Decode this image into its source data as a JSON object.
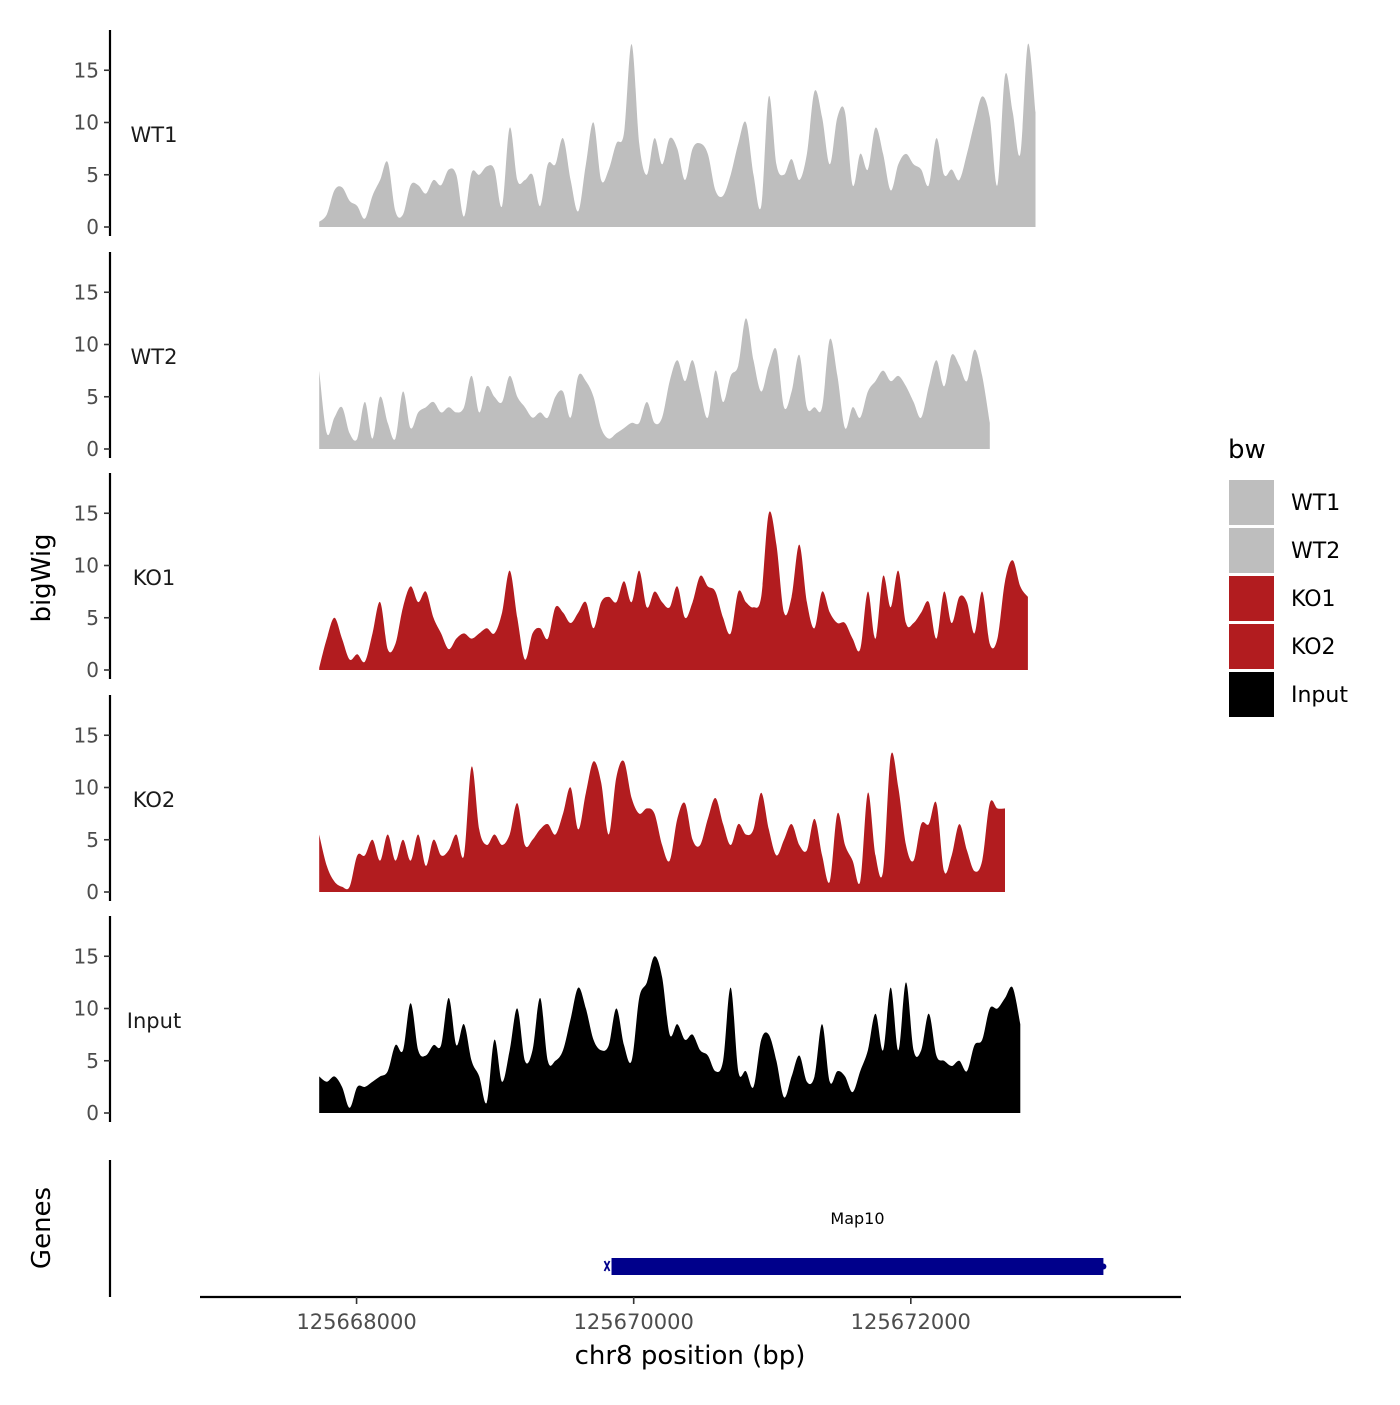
{
  "chart_data": {
    "type": "area",
    "title": "",
    "xlabel": "chr8 position (bp)",
    "ylabel": "bigWig",
    "genes_label": "Genes",
    "x_range": [
      125666870,
      125673950
    ],
    "x_ticks": [
      125668000,
      125670000,
      125672000
    ],
    "x_tick_labels": [
      "125668000",
      "125670000",
      "125672000"
    ],
    "y_range": [
      0,
      19
    ],
    "y_ticks": [
      0,
      5,
      10,
      15
    ],
    "y_tick_labels": [
      "0",
      "5",
      "10",
      "15"
    ],
    "legend_title": "bw",
    "legend_position": "right",
    "legend_entries": [
      {
        "label": "WT1",
        "color": "#bebebe"
      },
      {
        "label": "WT2",
        "color": "#bebebe"
      },
      {
        "label": "KO1",
        "color": "#b21c1f"
      },
      {
        "label": "KO2",
        "color": "#b21c1f"
      },
      {
        "label": "Input",
        "color": "#000000"
      }
    ],
    "x_start": 125667730,
    "x_step": 55,
    "series": [
      {
        "name": "WT1",
        "color": "#bebebe",
        "values": [
          0.5,
          1.2,
          3.5,
          3.8,
          2.5,
          2.0,
          0.8,
          3.0,
          4.5,
          6.2,
          1.5,
          1.2,
          4.0,
          4.0,
          3.2,
          4.5,
          4.0,
          5.5,
          5.0,
          1.0,
          5.2,
          5.0,
          5.8,
          5.5,
          2.0,
          9.5,
          4.5,
          4.5,
          5.0,
          2.0,
          6.0,
          6.0,
          8.5,
          4.5,
          1.5,
          6.0,
          10.0,
          4.5,
          5.5,
          8.0,
          9.0,
          17.5,
          8.0,
          5.0,
          8.5,
          6.0,
          8.5,
          7.5,
          4.5,
          7.5,
          8.0,
          7.0,
          3.5,
          3.0,
          5.0,
          8.0,
          10.0,
          5.0,
          2.0,
          12.5,
          6.0,
          5.0,
          6.5,
          4.5,
          7.0,
          13.0,
          10.5,
          6.0,
          10.5,
          11.0,
          4.0,
          7.0,
          5.5,
          9.5,
          7.0,
          3.5,
          6.0,
          7.0,
          6.0,
          5.5,
          4.0,
          8.5,
          5.0,
          5.5,
          4.5,
          7.0,
          10.0,
          12.5,
          10.5,
          4.0,
          14.5,
          11.0,
          7.0,
          17.5,
          11.0
        ]
      },
      {
        "name": "WT2",
        "color": "#bebebe",
        "values": [
          7.5,
          1.5,
          3.0,
          4.0,
          1.5,
          1.0,
          4.5,
          1.0,
          5.0,
          2.5,
          1.0,
          5.5,
          2.0,
          3.5,
          4.0,
          4.5,
          3.5,
          4.0,
          3.5,
          4.0,
          7.0,
          3.5,
          6.0,
          5.0,
          4.5,
          7.0,
          5.0,
          4.0,
          3.0,
          3.5,
          3.0,
          5.0,
          5.5,
          3.0,
          7.0,
          6.5,
          5.0,
          2.0,
          1.0,
          1.5,
          2.0,
          2.5,
          2.5,
          4.5,
          2.5,
          3.0,
          6.5,
          8.5,
          6.5,
          8.5,
          5.5,
          3.0,
          7.5,
          4.5,
          7.0,
          8.0,
          12.5,
          8.5,
          5.5,
          8.0,
          9.5,
          4.0,
          5.5,
          9.0,
          4.0,
          4.0,
          4.0,
          10.5,
          7.0,
          2.0,
          4.0,
          3.0,
          5.5,
          6.5,
          7.5,
          6.5,
          7.0,
          6.0,
          4.5,
          3.0,
          6.0,
          8.5,
          6.0,
          9.0,
          8.0,
          6.5,
          9.5,
          7.0,
          2.5
        ]
      },
      {
        "name": "KO1",
        "color": "#b21c1f",
        "values": [
          0.2,
          3.0,
          5.0,
          3.0,
          1.0,
          1.5,
          0.8,
          3.5,
          6.5,
          2.0,
          2.5,
          6.0,
          8.0,
          6.5,
          7.5,
          5.0,
          3.5,
          2.0,
          3.0,
          3.5,
          3.0,
          3.5,
          4.0,
          3.5,
          5.5,
          9.5,
          5.0,
          1.0,
          3.5,
          4.0,
          3.0,
          6.0,
          5.5,
          4.5,
          5.5,
          6.5,
          4.0,
          6.5,
          7.0,
          6.5,
          8.5,
          6.5,
          9.5,
          6.0,
          7.5,
          6.5,
          6.0,
          8.0,
          5.0,
          6.5,
          9.0,
          8.0,
          7.5,
          5.0,
          3.5,
          7.5,
          6.5,
          6.0,
          7.0,
          15.0,
          12.0,
          5.5,
          7.0,
          12.0,
          6.5,
          4.0,
          7.5,
          5.5,
          4.5,
          4.5,
          3.0,
          2.0,
          7.5,
          3.0,
          9.0,
          6.0,
          9.5,
          4.5,
          4.5,
          5.5,
          6.5,
          3.0,
          7.5,
          4.5,
          7.0,
          6.5,
          3.5,
          7.5,
          2.5,
          3.0,
          8.5,
          10.5,
          8.0,
          7.0
        ]
      },
      {
        "name": "KO2",
        "color": "#b21c1f",
        "values": [
          5.5,
          2.5,
          1.0,
          0.5,
          0.5,
          3.5,
          3.5,
          5.0,
          3.0,
          5.5,
          3.0,
          5.0,
          3.0,
          5.5,
          2.5,
          5.0,
          3.5,
          4.0,
          5.5,
          3.5,
          12.0,
          6.0,
          4.5,
          5.5,
          4.5,
          5.5,
          8.5,
          4.5,
          5.0,
          6.0,
          6.5,
          5.5,
          7.5,
          10.0,
          6.0,
          9.5,
          12.5,
          10.5,
          5.5,
          11.0,
          12.5,
          9.0,
          7.5,
          8.0,
          7.5,
          4.5,
          3.0,
          7.0,
          8.5,
          5.0,
          4.5,
          7.0,
          9.0,
          6.5,
          4.5,
          6.5,
          5.5,
          6.0,
          9.5,
          6.0,
          3.5,
          5.0,
          6.5,
          4.5,
          4.0,
          7.0,
          3.5,
          1.0,
          7.5,
          4.5,
          3.0,
          1.0,
          9.5,
          3.5,
          2.0,
          13.0,
          10.0,
          4.5,
          3.0,
          6.5,
          6.5,
          8.5,
          2.0,
          3.5,
          6.5,
          4.0,
          2.0,
          3.0,
          8.5,
          8.0,
          8.0
        ]
      },
      {
        "name": "Input",
        "color": "#000000",
        "values": [
          3.5,
          3.0,
          3.5,
          2.5,
          0.5,
          2.5,
          2.5,
          3.0,
          3.5,
          4.0,
          6.5,
          6.0,
          10.5,
          6.0,
          5.5,
          6.5,
          6.5,
          11.0,
          6.5,
          8.5,
          5.0,
          3.5,
          1.0,
          7.0,
          3.0,
          6.0,
          10.0,
          5.0,
          6.0,
          11.0,
          5.0,
          5.0,
          6.0,
          9.0,
          12.0,
          10.0,
          7.0,
          6.0,
          6.5,
          10.0,
          6.5,
          5.0,
          11.0,
          12.5,
          15.0,
          13.0,
          7.5,
          8.5,
          7.0,
          7.5,
          6.0,
          5.5,
          4.0,
          5.0,
          12.0,
          4.0,
          4.0,
          2.5,
          7.0,
          7.5,
          5.0,
          1.5,
          3.5,
          5.5,
          3.0,
          3.5,
          8.5,
          3.0,
          4.0,
          3.5,
          2.0,
          4.0,
          6.0,
          9.5,
          6.0,
          12.0,
          6.0,
          12.5,
          6.0,
          6.0,
          9.5,
          5.5,
          5.0,
          4.5,
          5.0,
          4.0,
          6.5,
          7.0,
          10.0,
          10.0,
          11.0,
          12.0,
          8.5
        ]
      }
    ],
    "gene_track": {
      "genes": [
        {
          "name": "Map10",
          "start": 125669840,
          "end": 125673390,
          "strand": "+",
          "color": "#00008b"
        }
      ]
    }
  }
}
